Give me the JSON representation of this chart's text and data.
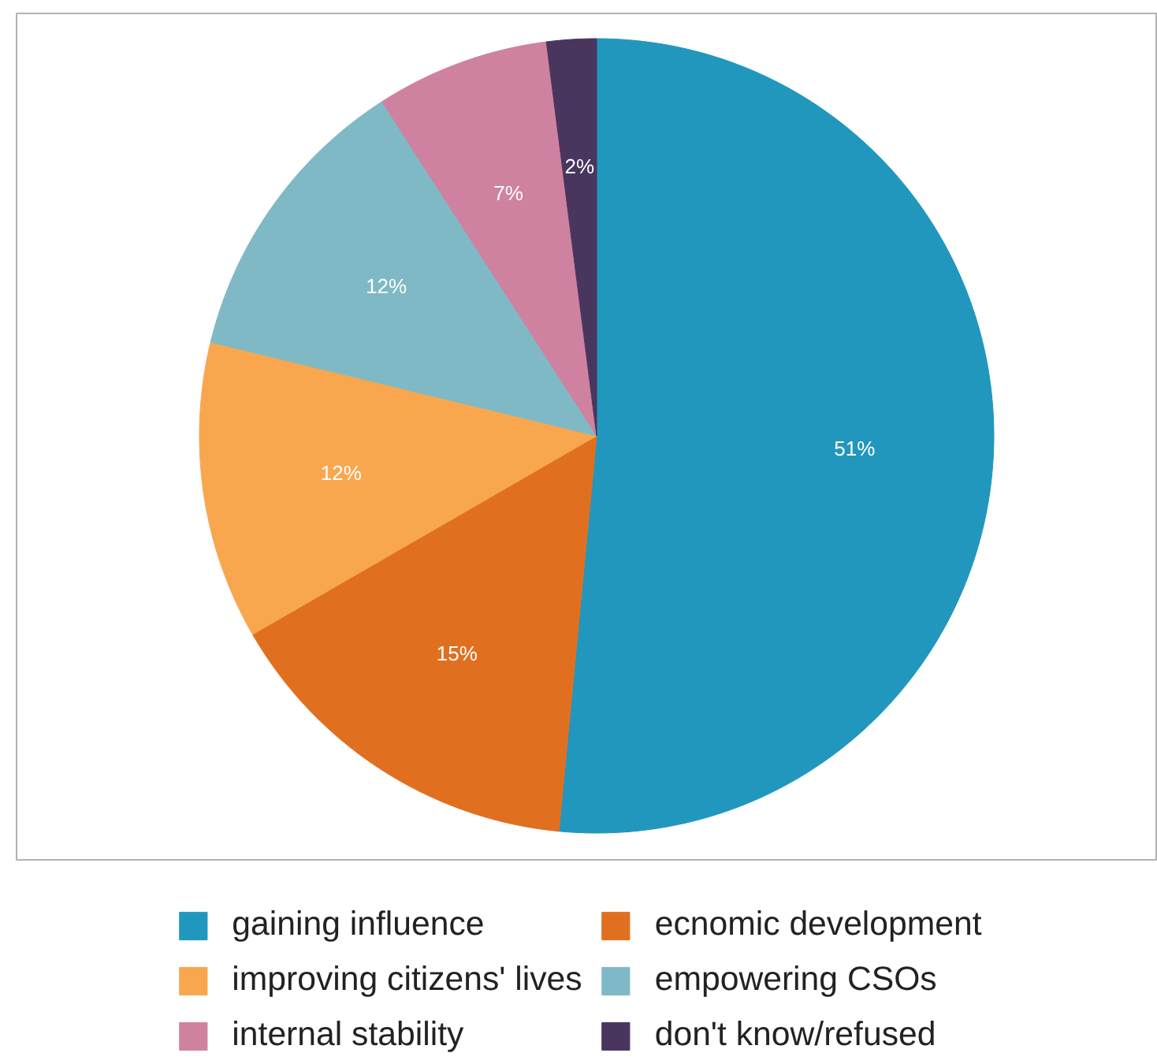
{
  "chart_data": {
    "type": "pie",
    "categories": [
      "gaining influence",
      "ecnomic development",
      "improving citizens' lives",
      "empowering CSOs",
      "internal stability",
      "don't know/refused"
    ],
    "values": [
      51,
      15,
      12,
      12,
      7,
      2
    ],
    "colors": [
      "#2197bd",
      "#e07020",
      "#f8a74f",
      "#7fb9c6",
      "#cf82a0",
      "#49365f"
    ],
    "value_labels": [
      "51%",
      "15%",
      "12%",
      "12%",
      "7%",
      "2%"
    ],
    "legend": "bottom"
  }
}
